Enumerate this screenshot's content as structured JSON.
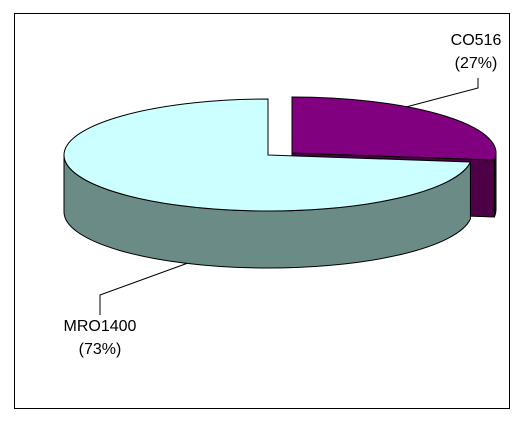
{
  "chart_data": {
    "type": "pie",
    "style": "3d-exploded",
    "slices": [
      {
        "label": "CO516",
        "value": 27,
        "percent_label": "(27%)",
        "color_top": "#800080",
        "color_side": "#4d0045",
        "exploded": true
      },
      {
        "label": "MRO1400",
        "value": 73,
        "percent_label": "(73%)",
        "color_top": "#ccffff",
        "color_side": "#6b8b87",
        "exploded": false
      }
    ],
    "title": "",
    "legend": "none"
  }
}
